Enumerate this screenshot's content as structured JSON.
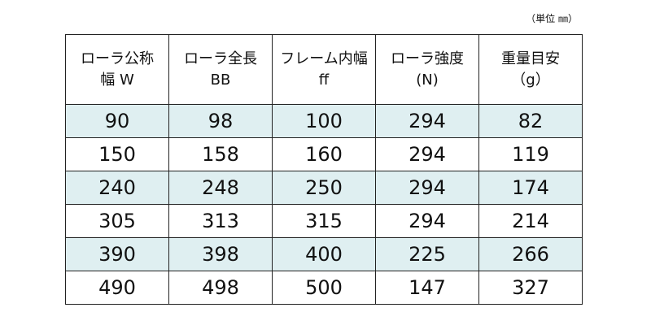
{
  "unit_note": "（単位 ㎜）",
  "table": {
    "header": [
      [
        "ローラ公称",
        "幅 W"
      ],
      [
        "ローラ全長",
        "BB"
      ],
      [
        "フレーム内幅",
        "ff"
      ],
      [
        "ローラ強度",
        "(N)"
      ],
      [
        "重量目安",
        "（g）"
      ]
    ],
    "rows": [
      [
        90,
        98,
        100,
        294,
        82
      ],
      [
        150,
        158,
        160,
        294,
        119
      ],
      [
        240,
        248,
        250,
        294,
        174
      ],
      [
        305,
        313,
        315,
        294,
        214
      ],
      [
        390,
        398,
        400,
        225,
        266
      ],
      [
        490,
        498,
        500,
        147,
        327
      ]
    ]
  }
}
